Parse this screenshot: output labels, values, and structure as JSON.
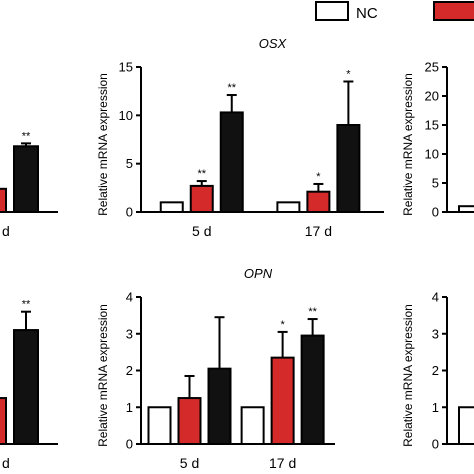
{
  "legend": [
    {
      "label": "NC",
      "color": "#ffffff"
    },
    {
      "label": "",
      "color": "#d42a2a"
    }
  ],
  "colors": {
    "NC": "#ffffff",
    "red": "#d42a2a",
    "black": "#111111",
    "stroke": "#000000"
  },
  "chart_data": [
    {
      "id": "top-left",
      "type": "bar",
      "title": "",
      "ylabel": "",
      "ylim": [
        0,
        15
      ],
      "categories": [
        "7 d"
      ],
      "series": [
        {
          "values": [
            2.4
          ],
          "errors": [
            0.15
          ],
          "sig": [
            "**"
          ]
        },
        {
          "values": [
            6.8
          ],
          "errors": [
            0.3
          ],
          "sig": [
            "**"
          ]
        }
      ]
    },
    {
      "id": "osx",
      "type": "bar",
      "title": "OSX",
      "ylabel": "Relative mRNA expression",
      "ylim": [
        0,
        15
      ],
      "yticks": [
        0,
        5,
        10,
        15
      ],
      "categories": [
        "5 d",
        "17 d"
      ],
      "series": [
        {
          "values": [
            1,
            1
          ],
          "errors": [
            0,
            0
          ],
          "sig": [
            "",
            ""
          ]
        },
        {
          "values": [
            2.7,
            2.1
          ],
          "errors": [
            0.5,
            0.8
          ],
          "sig": [
            "**",
            "*"
          ]
        },
        {
          "values": [
            10.3,
            9.0
          ],
          "errors": [
            1.8,
            4.5
          ],
          "sig": [
            "**",
            "*"
          ]
        }
      ]
    },
    {
      "id": "top-right",
      "type": "bar",
      "title": "",
      "ylabel": "Relative mRNA expression",
      "ylim": [
        0,
        25
      ],
      "yticks": [
        0,
        5,
        10,
        15,
        20,
        25
      ],
      "categories": [
        ""
      ],
      "series": [
        {
          "values": [
            1
          ],
          "errors": [
            0
          ],
          "sig": [
            ""
          ]
        }
      ]
    },
    {
      "id": "bottom-left",
      "type": "bar",
      "title": "",
      "ylabel": "",
      "ylim": [
        0,
        4
      ],
      "categories": [
        "7 d"
      ],
      "series": [
        {
          "values": [
            1.25
          ],
          "errors": [
            0.15
          ],
          "sig": [
            "**"
          ]
        },
        {
          "values": [
            3.1
          ],
          "errors": [
            0.5
          ],
          "sig": [
            "**"
          ]
        }
      ]
    },
    {
      "id": "opn",
      "type": "bar",
      "title": "OPN",
      "ylabel": "Relative mRNA expression",
      "ylim": [
        0,
        4
      ],
      "yticks": [
        0,
        1,
        2,
        3,
        4
      ],
      "categories": [
        "5 d",
        "17 d"
      ],
      "series": [
        {
          "values": [
            1,
            1
          ],
          "errors": [
            0,
            0
          ],
          "sig": [
            "",
            ""
          ]
        },
        {
          "values": [
            1.25,
            2.35
          ],
          "errors": [
            0.6,
            0.7
          ],
          "sig": [
            "",
            "*"
          ]
        },
        {
          "values": [
            2.05,
            2.95
          ],
          "errors": [
            1.4,
            0.45
          ],
          "sig": [
            "",
            "**"
          ]
        }
      ]
    },
    {
      "id": "bottom-right",
      "type": "bar",
      "title": "",
      "ylabel": "Relative mRNA expression",
      "ylim": [
        0,
        4
      ],
      "yticks": [
        0,
        1,
        2,
        3,
        4
      ],
      "categories": [
        ""
      ],
      "series": [
        {
          "values": [
            1
          ],
          "errors": [
            0
          ],
          "sig": [
            ""
          ]
        }
      ]
    }
  ]
}
